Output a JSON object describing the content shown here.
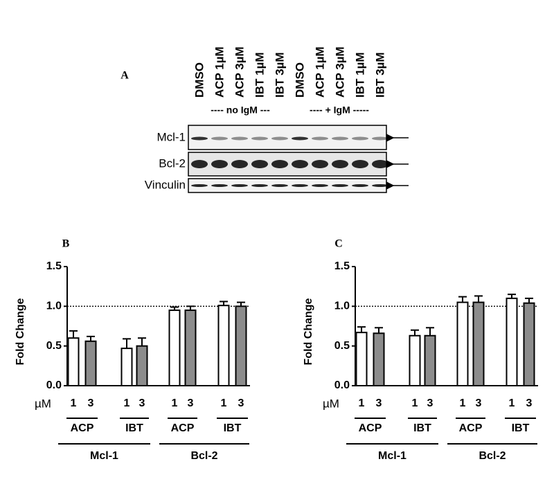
{
  "blot": {
    "panel_label": "A",
    "lanes": [
      "DMSO",
      "ACP 1µM",
      "ACP 3µM",
      "IBT 1µM",
      "IBT 3µM",
      "DMSO",
      "ACP 1µM",
      "ACP 3µM",
      "IBT 1µM",
      "IBT 3µM"
    ],
    "conditions": [
      "---- no IgM ---",
      "---- + IgM -----"
    ],
    "rows": [
      "Mcl-1",
      "Bcl-2",
      "Vinculin"
    ]
  },
  "chart_data": [
    {
      "type": "bar",
      "panel_label": "B",
      "ylabel": "Fold Change",
      "x_unit_label": "µM",
      "categories": [
        "1",
        "3",
        "1",
        "3",
        "1",
        "3",
        "1",
        "3"
      ],
      "values": [
        0.6,
        0.56,
        0.47,
        0.5,
        0.95,
        0.95,
        1.01,
        1.0
      ],
      "errors": [
        0.09,
        0.06,
        0.12,
        0.1,
        0.04,
        0.05,
        0.05,
        0.05
      ],
      "colors": [
        "#ffffff",
        "#8c8c8c",
        "#ffffff",
        "#8c8c8c",
        "#ffffff",
        "#8c8c8c",
        "#ffffff",
        "#8c8c8c"
      ],
      "groups": [
        "ACP",
        "IBT",
        "ACP",
        "IBT"
      ],
      "supergroups": [
        "Mcl-1",
        "Bcl-2"
      ],
      "reference_line": 1.0,
      "ylim": [
        0,
        1.5
      ],
      "yticks": [
        {
          "value": 0,
          "label": "0.0"
        },
        {
          "value": 0.5,
          "label": "0.5"
        },
        {
          "value": 1,
          "label": "1.0"
        },
        {
          "value": 1.5,
          "label": "1.5"
        }
      ]
    },
    {
      "type": "bar",
      "panel_label": "C",
      "ylabel": "Fold Change",
      "x_unit_label": "µM",
      "categories": [
        "1",
        "3",
        "1",
        "3",
        "1",
        "3",
        "1",
        "3"
      ],
      "values": [
        0.67,
        0.66,
        0.63,
        0.63,
        1.05,
        1.05,
        1.1,
        1.04
      ],
      "errors": [
        0.07,
        0.07,
        0.07,
        0.1,
        0.07,
        0.08,
        0.05,
        0.06
      ],
      "colors": [
        "#ffffff",
        "#8c8c8c",
        "#ffffff",
        "#8c8c8c",
        "#ffffff",
        "#8c8c8c",
        "#ffffff",
        "#8c8c8c"
      ],
      "groups": [
        "ACP",
        "IBT",
        "ACP",
        "IBT"
      ],
      "supergroups": [
        "Mcl-1",
        "Bcl-2"
      ],
      "reference_line": 1.0,
      "ylim": [
        0,
        1.5
      ],
      "yticks": [
        {
          "value": 0,
          "label": "0.0"
        },
        {
          "value": 0.5,
          "label": "0.5"
        },
        {
          "value": 1,
          "label": "1.0"
        },
        {
          "value": 1.5,
          "label": "1.5"
        }
      ]
    }
  ]
}
